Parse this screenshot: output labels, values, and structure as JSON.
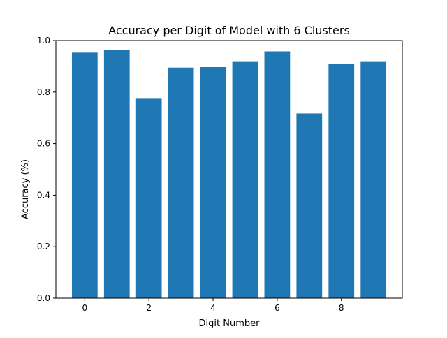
{
  "chart_data": {
    "type": "bar",
    "title": "Accuracy per Digit of Model with 6 Clusters",
    "xlabel": "Digit Number",
    "ylabel": "Accuracy (%)",
    "categories": [
      0,
      1,
      2,
      3,
      4,
      5,
      6,
      7,
      8,
      9
    ],
    "values": [
      0.953,
      0.963,
      0.774,
      0.895,
      0.897,
      0.917,
      0.958,
      0.717,
      0.909,
      0.917
    ],
    "xlim": [
      -0.9,
      9.9
    ],
    "ylim": [
      0,
      1.0
    ],
    "xticks": [
      0,
      2,
      4,
      6,
      8
    ],
    "xtick_labels": [
      "0",
      "2",
      "4",
      "6",
      "8"
    ],
    "yticks": [
      0.0,
      0.2,
      0.4,
      0.6,
      0.8,
      1.0
    ],
    "ytick_labels": [
      "0.0",
      "0.2",
      "0.4",
      "0.6",
      "0.8",
      "1.0"
    ],
    "bar_color": "#1f77b4",
    "grid": false,
    "legend": "none"
  }
}
